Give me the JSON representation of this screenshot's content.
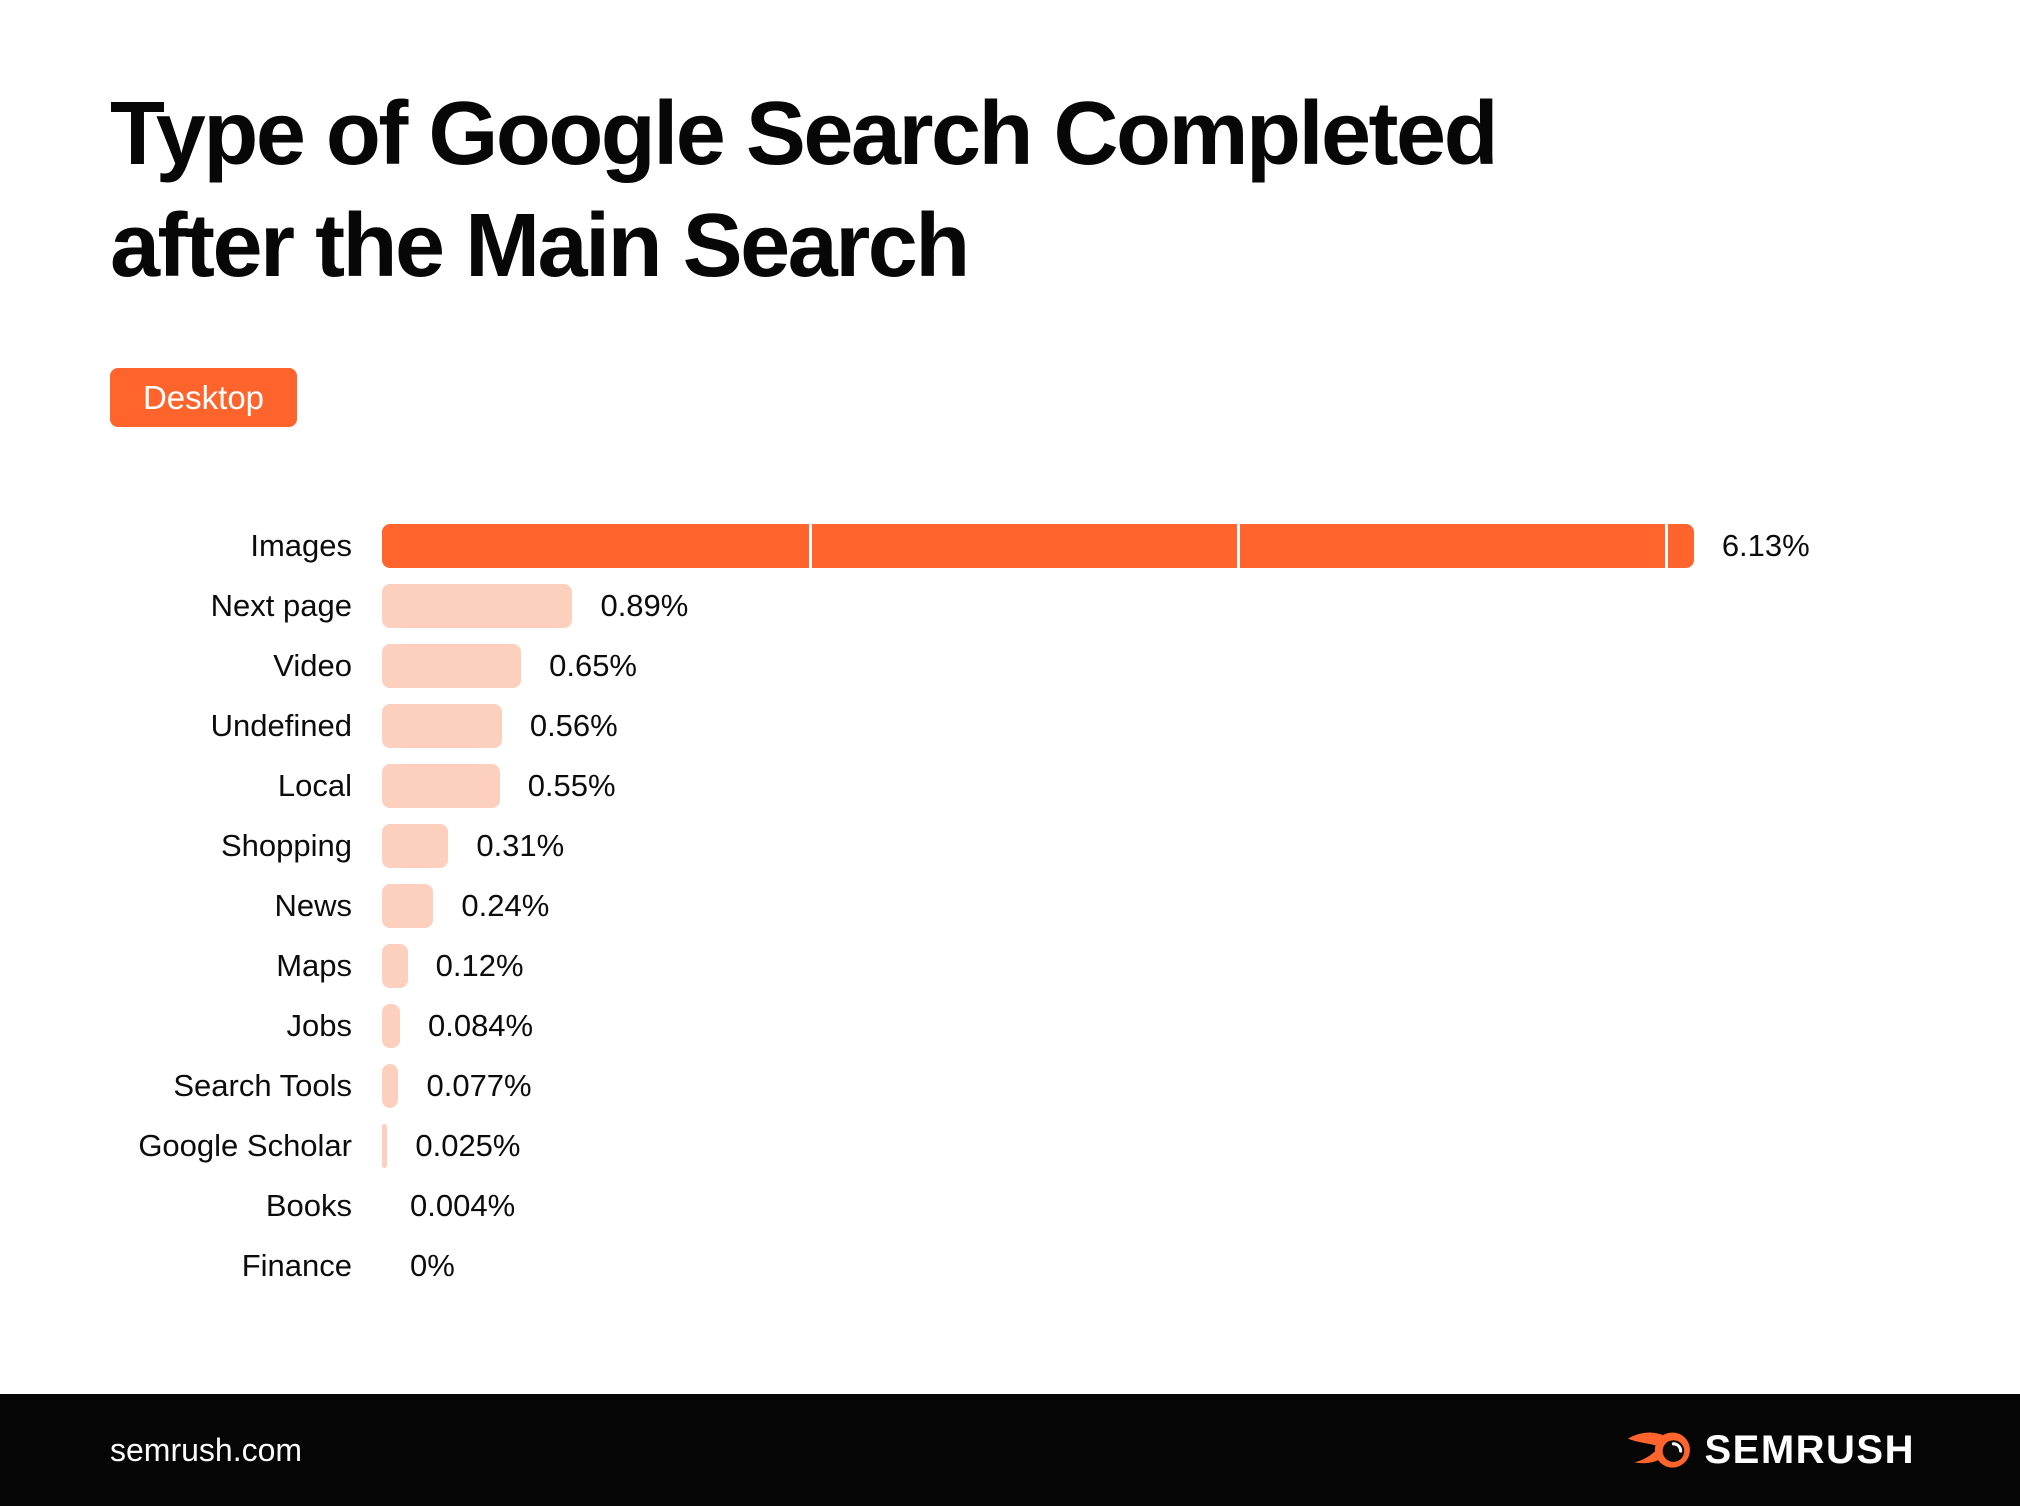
{
  "title": "Type of Google Search Completed\nafter the Main Search",
  "badge": {
    "label": "Desktop"
  },
  "chart_data": {
    "type": "bar",
    "orientation": "horizontal",
    "title": "Type of Google Search Completed after the Main Search",
    "xlabel": "",
    "ylabel": "",
    "legend": false,
    "xlim": [
      0,
      6.5
    ],
    "gridlines_percent": [
      2,
      4,
      6
    ],
    "categories": [
      "Images",
      "Next page",
      "Video",
      "Undefined",
      "Local",
      "Shopping",
      "News",
      "Maps",
      "Jobs",
      "Search Tools",
      "Google Scholar",
      "Books",
      "Finance"
    ],
    "values": [
      6.13,
      0.89,
      0.65,
      0.56,
      0.55,
      0.31,
      0.24,
      0.12,
      0.084,
      0.077,
      0.025,
      0.004,
      0
    ],
    "display_values": [
      "6.13%",
      "0.89%",
      "0.65%",
      "0.56%",
      "0.55%",
      "0.31%",
      "0.24%",
      "0.12%",
      "0.084%",
      "0.077%",
      "0.025%",
      "0.004%",
      "0%"
    ],
    "highlight_index": 0
  },
  "colors": {
    "accent": "#FF642D",
    "bar_light": "#FCD0BD",
    "footer_bg": "#050505",
    "text": "#0c0c0c"
  },
  "footer": {
    "site": "semrush.com",
    "brand": "SEMRUSH",
    "logo_icon": "semrush-flame-icon"
  }
}
